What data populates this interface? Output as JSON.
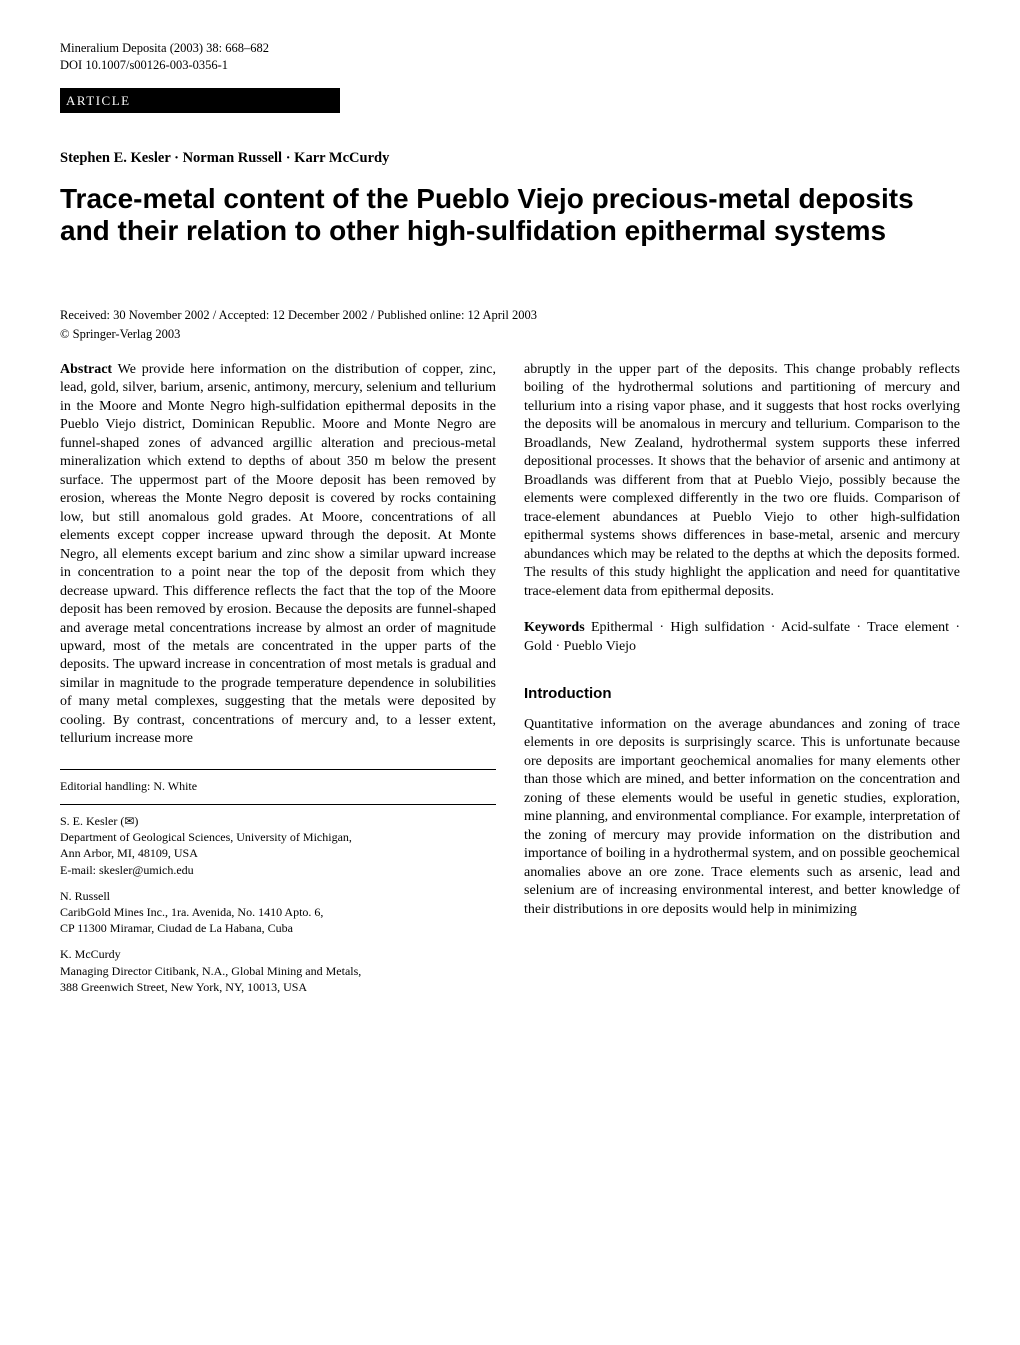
{
  "journal_meta": {
    "citation": "Mineralium Deposita (2003) 38: 668–682",
    "doi": "DOI 10.1007/s00126-003-0356-1"
  },
  "article_badge": "ARTICLE",
  "authors_line": "Stephen E. Kesler · Norman Russell · Karr McCurdy",
  "title": "Trace-metal content of the Pueblo Viejo precious-metal deposits and their relation to other high-sulfidation epithermal systems",
  "received_line": "Received: 30 November 2002 / Accepted: 12 December 2002 / Published online: 12 April 2003",
  "copyright_line": "© Springer-Verlag 2003",
  "abstract": {
    "label": "Abstract",
    "text": " We provide here information on the distribution of copper, zinc, lead, gold, silver, barium, arsenic, antimony, mercury, selenium and tellurium in the Moore and Monte Negro high-sulfidation epithermal deposits in the Pueblo Viejo district, Dominican Republic. Moore and Monte Negro are funnel-shaped zones of advanced argillic alteration and precious-metal mineralization which extend to depths of about 350 m below the present surface. The uppermost part of the Moore deposit has been removed by erosion, whereas the Monte Negro deposit is covered by rocks containing low, but still anomalous gold grades. At Moore, concentrations of all elements except copper increase upward through the deposit. At Monte Negro, all elements except barium and zinc show a similar upward increase in concentration to a point near the top of the deposit from which they decrease upward. This difference reflects the fact that the top of the Moore deposit has been removed by erosion. Because the deposits are funnel-shaped and average metal concentrations increase by almost an order of magnitude upward, most of the metals are concentrated in the upper parts of the deposits. The upward increase in concentration of most metals is gradual and similar in magnitude to the prograde temperature dependence in solubilities of many metal complexes, suggesting that the metals were deposited by cooling. By contrast, concentrations of mercury and, to a lesser extent, tellurium increase more"
  },
  "right_col_continuation": "abruptly in the upper part of the deposits. This change probably reflects boiling of the hydrothermal solutions and partitioning of mercury and tellurium into a rising vapor phase, and it suggests that host rocks overlying the deposits will be anomalous in mercury and tellurium. Comparison to the Broadlands, New Zealand, hydrothermal system supports these inferred depositional processes. It shows that the behavior of arsenic and antimony at Broadlands was different from that at Pueblo Viejo, possibly because the elements were complexed differently in the two ore fluids. Comparison of trace-element abundances at Pueblo Viejo to other high-sulfidation epithermal systems shows differences in base-metal, arsenic and mercury abundances which may be related to the depths at which the deposits formed. The results of this study highlight the application and need for quantitative trace-element data from epithermal deposits.",
  "keywords": {
    "label": "Keywords",
    "text": " Epithermal · High sulfidation · Acid-sulfate · Trace element · Gold · Pueblo Viejo"
  },
  "intro": {
    "heading": "Introduction",
    "para": "Quantitative information on the average abundances and zoning of trace elements in ore deposits is surprisingly scarce. This is unfortunate because ore deposits are important geochemical anomalies for many elements other than those which are mined, and better information on the concentration and zoning of these elements would be useful in genetic studies, exploration, mine planning, and environmental compliance. For example, interpretation of the zoning of mercury may provide information on the distribution and importance of boiling in a hydrothermal system, and on possible geochemical anomalies above an ore zone. Trace elements such as arsenic, lead and selenium are of increasing environmental interest, and better knowledge of their distributions in ore deposits would help in minimizing"
  },
  "footer": {
    "editorial": "Editorial handling: N. White",
    "authors": [
      {
        "name_line": "S. E. Kesler (✉)",
        "affil1": "Department of Geological Sciences, University of Michigan,",
        "affil2": "Ann Arbor, MI, 48109, USA",
        "email": "E-mail: skesler@umich.edu"
      },
      {
        "name_line": "N. Russell",
        "affil1": "CaribGold Mines Inc., 1ra. Avenida, No. 1410 Apto. 6,",
        "affil2": "CP 11300 Miramar, Ciudad de La Habana, Cuba",
        "email": ""
      },
      {
        "name_line": "K. McCurdy",
        "affil1": "Managing Director Citibank, N.A., Global Mining and Metals,",
        "affil2": "388 Greenwich Street, New York, NY, 10013, USA",
        "email": ""
      }
    ]
  }
}
